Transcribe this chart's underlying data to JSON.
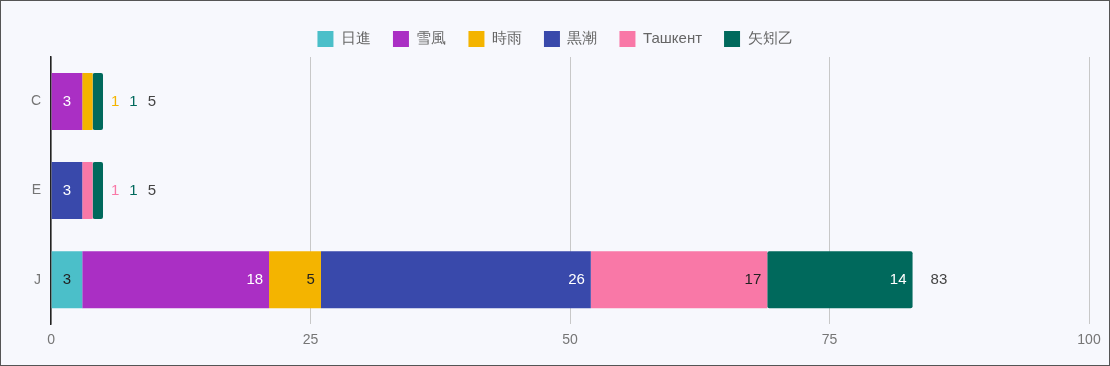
{
  "chart_data": {
    "type": "bar",
    "orientation": "horizontal",
    "stacked": true,
    "categories": [
      "C",
      "E",
      "J"
    ],
    "series": [
      {
        "name": "日進",
        "color": "#4bbfc9",
        "values": [
          null,
          null,
          3
        ]
      },
      {
        "name": "雪風",
        "color": "#aa2fc4",
        "values": [
          3,
          null,
          18
        ]
      },
      {
        "name": "時雨",
        "color": "#f4b400",
        "values": [
          1,
          null,
          5
        ]
      },
      {
        "name": "黒潮",
        "color": "#3949ab",
        "values": [
          null,
          3,
          26
        ]
      },
      {
        "name": "Ташкент",
        "color": "#f978a7",
        "values": [
          null,
          1,
          17
        ]
      },
      {
        "name": "矢矧乙",
        "color": "#00695c",
        "values": [
          1,
          1,
          14
        ]
      }
    ],
    "totals": [
      "5",
      "5",
      "83"
    ],
    "data_labels": true,
    "xlim": [
      0,
      100
    ],
    "xticks": [
      0,
      25,
      50,
      75,
      100
    ],
    "grid": "x",
    "legend": "top"
  }
}
